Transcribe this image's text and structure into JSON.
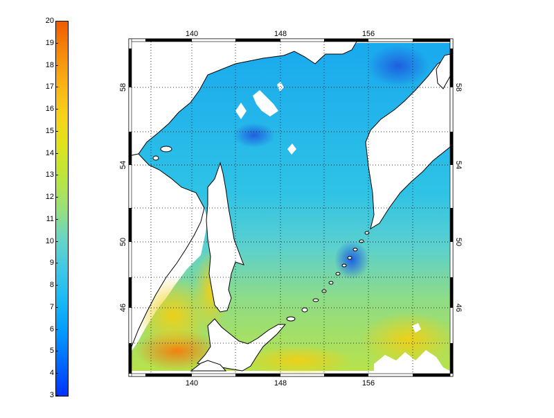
{
  "colorbar": {
    "min": 3,
    "max": 20,
    "labels": [
      "20",
      "19",
      "18",
      "17",
      "16",
      "15",
      "14",
      "13",
      "12",
      "11",
      "10",
      "9",
      "8",
      "7",
      "6",
      "5",
      "4",
      "3"
    ],
    "stops": [
      "#0033ff",
      "#0066ff",
      "#0099ff",
      "#17b8f5",
      "#3cc8e8",
      "#66d4c8",
      "#99e07a",
      "#bbe63c",
      "#dfe31c",
      "#f7d21a",
      "#f9b214",
      "#f58a0c",
      "#f05a00"
    ]
  },
  "map": {
    "lon_top_labels": [
      "140",
      "148",
      "156"
    ],
    "lon_bottom_labels": [
      "140",
      "148",
      "156"
    ],
    "lat_left_labels": [
      "58",
      "54",
      "50",
      "46"
    ],
    "lat_right_labels": [
      "58",
      "54",
      "50",
      "46"
    ],
    "lon_range": [
      136.5,
      165.0
    ],
    "lat_range": [
      42.0,
      60.0
    ],
    "grid": true,
    "land_color": "#ffffff",
    "coast_color": "#000000"
  }
}
